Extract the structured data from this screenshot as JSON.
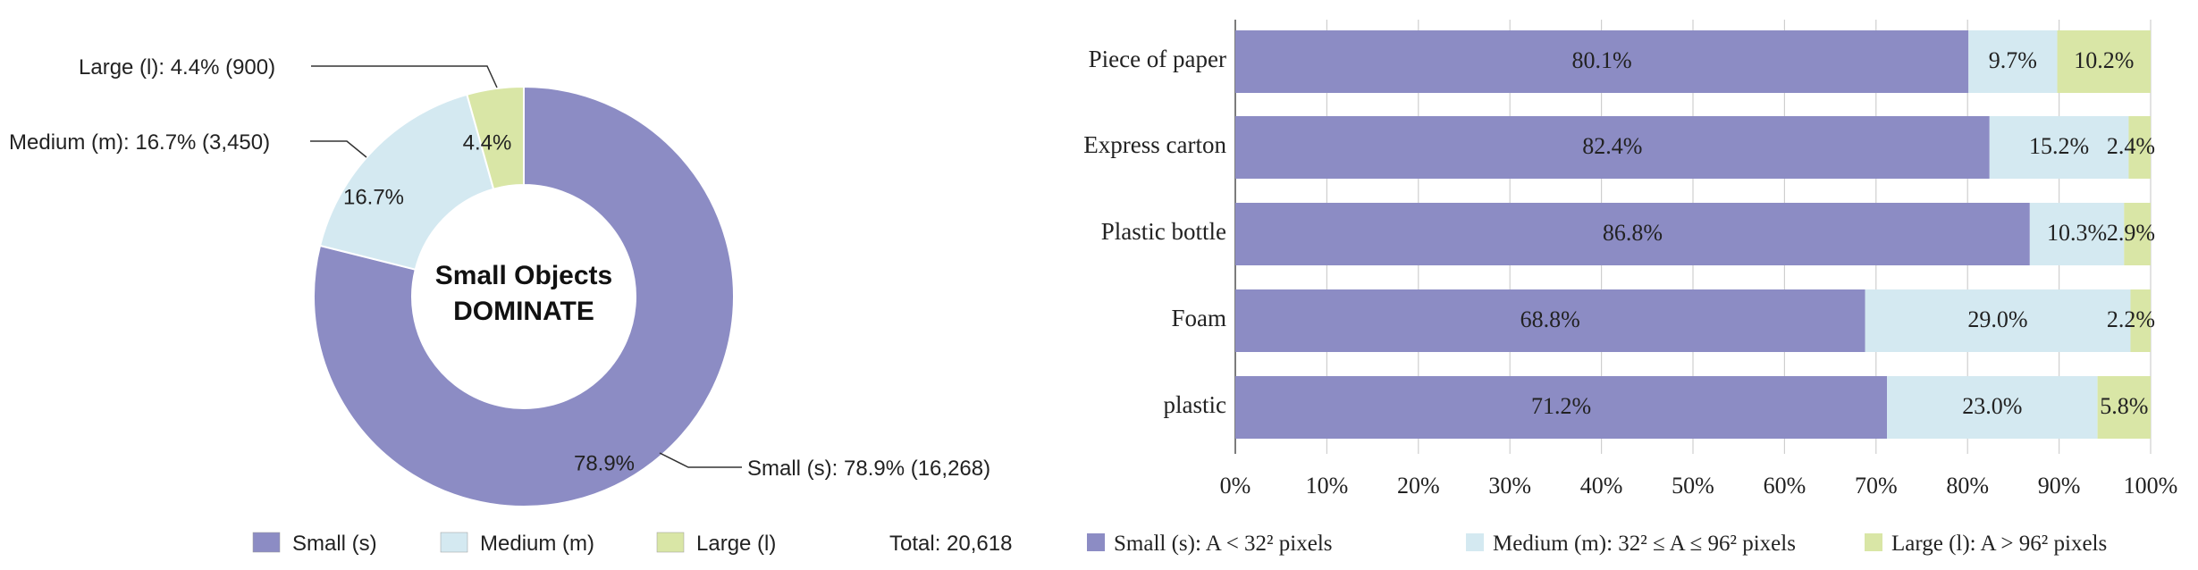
{
  "colors": {
    "small": "#8c8cc4",
    "medium": "#d4e9f1",
    "large": "#d9e6a6"
  },
  "chart_data": [
    {
      "type": "pie",
      "variant": "donut",
      "center_text": [
        "Small Objects",
        "DOMINATE"
      ],
      "slices": [
        {
          "key": "small",
          "label": "78.9%",
          "callout": "Small (s): 78.9% (16,268)",
          "value": 16268,
          "percent": 78.9
        },
        {
          "key": "medium",
          "label": "16.7%",
          "callout": "Medium (m): 16.7% (3,450)",
          "value": 3450,
          "percent": 16.7
        },
        {
          "key": "large",
          "label": "4.4%",
          "callout": "Large (l): 4.4% (900)",
          "value": 900,
          "percent": 4.4
        }
      ],
      "legend": [
        {
          "key": "small",
          "label": "Small (s)"
        },
        {
          "key": "medium",
          "label": "Medium (m)"
        },
        {
          "key": "large",
          "label": "Large (l)"
        }
      ],
      "total_label": "Total: 20,618",
      "legend_position": "bottom"
    },
    {
      "type": "bar",
      "orientation": "horizontal",
      "stacked": true,
      "categories": [
        "Piece of paper",
        "Express carton",
        "Plastic bottle",
        "Foam",
        "plastic"
      ],
      "series": [
        {
          "key": "small",
          "name": "Small (s): A < 32² pixels",
          "values": [
            80.1,
            82.4,
            86.8,
            68.8,
            71.2
          ],
          "labels": [
            "80.1%",
            "82.4%",
            "86.8%",
            "68.8%",
            "71.2%"
          ]
        },
        {
          "key": "medium",
          "name": "Medium (m): 32² ≤ A ≤ 96² pixels",
          "values": [
            9.7,
            15.2,
            10.3,
            29.0,
            23.0
          ],
          "labels": [
            "9.7%",
            "15.2%",
            "10.3%",
            "29.0%",
            "23.0%"
          ]
        },
        {
          "key": "large",
          "name": "Large (l): A > 96² pixels",
          "values": [
            10.2,
            2.4,
            2.9,
            2.2,
            5.8
          ],
          "labels": [
            "10.2%",
            "2.4%",
            "2.9%",
            "2.2%",
            "5.8%"
          ]
        }
      ],
      "xlim": [
        0,
        100
      ],
      "x_ticks": [
        "0%",
        "10%",
        "20%",
        "30%",
        "40%",
        "50%",
        "60%",
        "70%",
        "80%",
        "90%",
        "100%"
      ],
      "legend_position": "bottom",
      "grid": true
    }
  ]
}
